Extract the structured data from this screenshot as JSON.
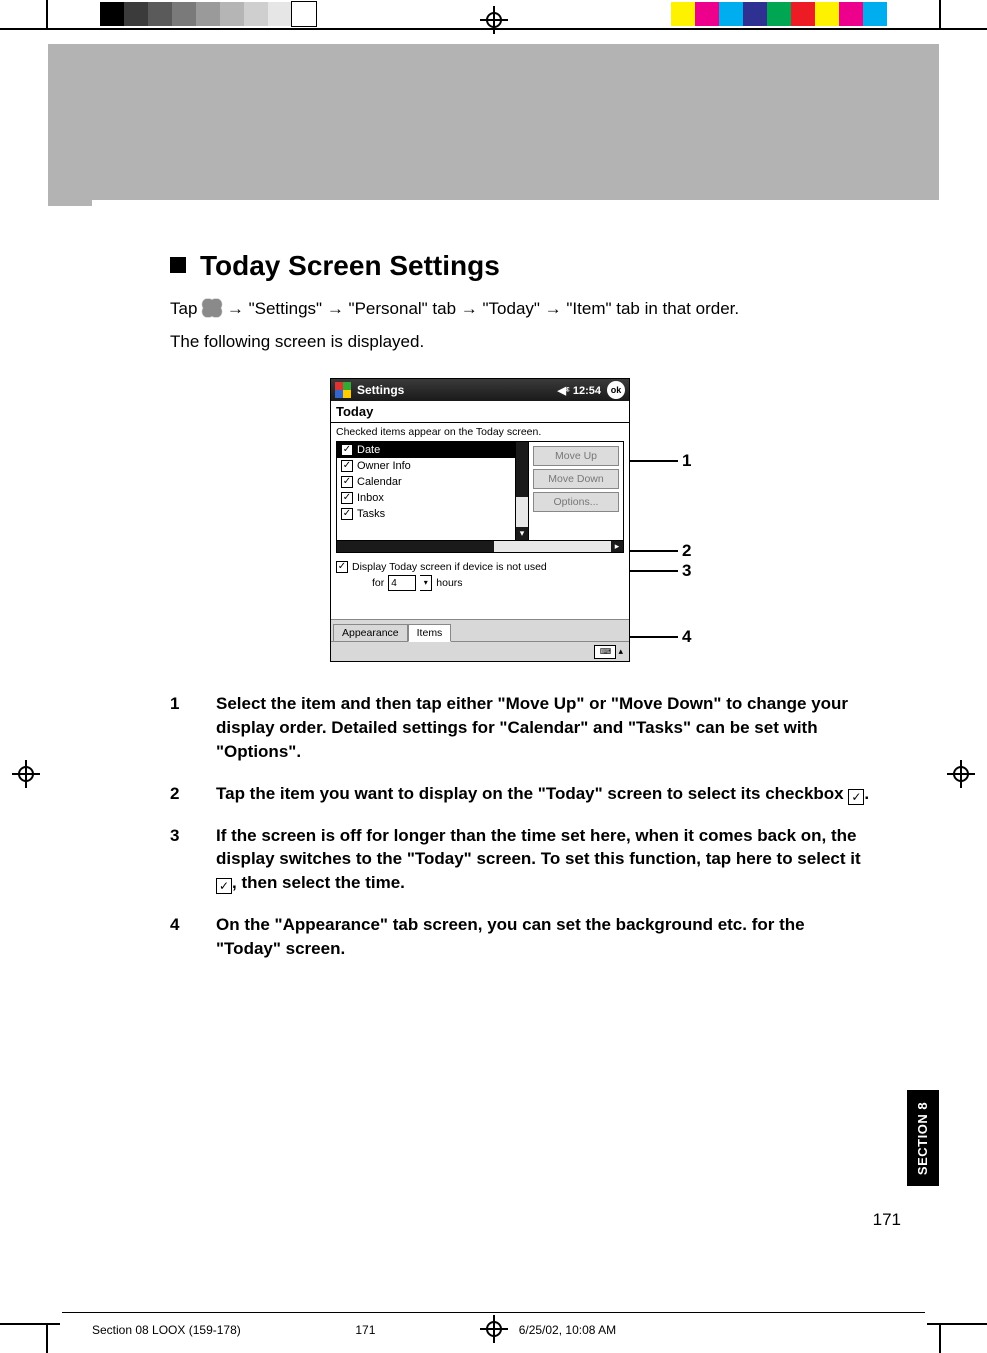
{
  "printbar": {
    "left_swatches": [
      "#000000",
      "#3b3b3b",
      "#5a5a5a",
      "#7a7a7a",
      "#9a9a9a",
      "#b5b5b5",
      "#cfcfcf",
      "#e6e6e6",
      "#ffffff"
    ],
    "right_swatches": [
      "#fff200",
      "#ec008c",
      "#00aeef",
      "#2e3192",
      "#00a651",
      "#ed1c24",
      "#fff200",
      "#ec008c",
      "#00aeef"
    ]
  },
  "heading": "Today Screen Settings",
  "intro": {
    "prefix": "Tap ",
    "path": " → \"Settings\" → \"Personal\" tab → \"Today\" → \"Item\" tab in that order."
  },
  "intro2": "The following screen is displayed.",
  "device": {
    "title": "Settings",
    "sound_time": "◀ᵋ 12:54",
    "ok": "ok",
    "subhead": "Today",
    "hint": "Checked items appear on the Today screen.",
    "items": [
      {
        "label": "Date",
        "checked": true,
        "selected": true
      },
      {
        "label": "Owner Info",
        "checked": true,
        "selected": false
      },
      {
        "label": "Calendar",
        "checked": true,
        "selected": false
      },
      {
        "label": "Inbox",
        "checked": true,
        "selected": false
      },
      {
        "label": "Tasks",
        "checked": true,
        "selected": false
      }
    ],
    "buttons": {
      "up": "Move Up",
      "down": "Move Down",
      "opt": "Options..."
    },
    "auto": {
      "label": "Display Today screen if device is not used",
      "for": "for",
      "hours_value": "4",
      "hours_label": "hours"
    },
    "tabs": {
      "appearance": "Appearance",
      "items": "Items"
    }
  },
  "callouts": {
    "c1": "1",
    "c2": "2",
    "c3": "3",
    "c4": "4"
  },
  "desc": {
    "n1": "1",
    "t1": "Select the item and then tap either \"Move Up\" or \"Move Down\" to change your display order. Detailed settings for \"Calendar\" and \"Tasks\" can be set with \"Options\".",
    "n2": "2",
    "t2a": "Tap the item you want to display on the \"Today\" screen to select its checkbox ",
    "t2b": ".",
    "n3": "3",
    "t3a": "If the screen is off for longer than the time set here, when it comes back on, the display switches to the \"Today\" screen. To set this function, tap here to select it ",
    "t3b": ", then select the time.",
    "n4": "4",
    "t4": "On the \"Appearance\" tab screen, you can set the background etc. for the \"Today\" screen."
  },
  "sectiontab": "SECTION 8",
  "pagenum": "171",
  "slug": {
    "file": "Section 08 LOOX (159-178)",
    "page": "171",
    "date": "6/25/02, 10:08 AM"
  }
}
